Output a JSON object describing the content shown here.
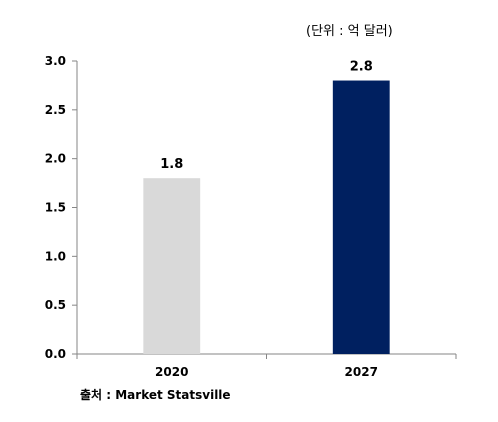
{
  "unit_note": "(단위 : 억 달러)",
  "source_note": "출처 : Market Statsville",
  "chart_data": {
    "type": "bar",
    "categories": [
      "2020",
      "2027"
    ],
    "values": [
      1.8,
      2.8
    ],
    "value_labels": [
      "1.8",
      "2.8"
    ],
    "colors": [
      "#d9d9d9",
      "#002060"
    ],
    "ylim": [
      0,
      3.0
    ],
    "yticks": [
      "0.0",
      "0.5",
      "1.0",
      "1.5",
      "2.0",
      "2.5",
      "3.0"
    ],
    "grid": false,
    "title": "",
    "xlabel": "",
    "ylabel": ""
  }
}
